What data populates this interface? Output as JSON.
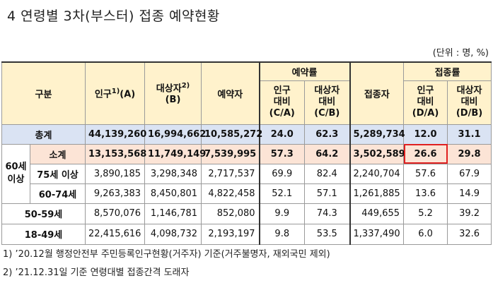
{
  "title": "4  연령별 3차(부스터) 접종 예약현황",
  "unit": "(단위 : 명, %)",
  "header": {
    "group": "구분",
    "population": "인구",
    "population_sup": "1)",
    "population_suffix": "(A)",
    "target": "대상자",
    "target_sup": "2)",
    "target_suffix": "(B)",
    "reservations": "예약자",
    "reservation_rate": "예약률",
    "res_pop_1": "인구",
    "res_pop_2": "대비",
    "res_pop_3": "(C/A)",
    "res_tgt_1": "대상자",
    "res_tgt_2": "대비",
    "res_tgt_3": "(C/B)",
    "vaccinated": "접종자",
    "vaccination_rate": "접종률",
    "vac_pop_1": "인구",
    "vac_pop_2": "대비",
    "vac_pop_3": "(D/A)",
    "vac_tgt_1": "대상자",
    "vac_tgt_2": "대비",
    "vac_tgt_3": "(D/B)"
  },
  "rows": {
    "total": {
      "label": "총계",
      "population": "44,139,260",
      "target": "16,994,662",
      "reservations": "10,585,272",
      "res_pop": "24.0",
      "res_tgt": "62.3",
      "vaccinated": "5,289,734",
      "vac_pop": "12.0",
      "vac_tgt": "31.1"
    },
    "over60_group": "60세\n이상",
    "subtotal": {
      "label": "소계",
      "population": "13,153,568",
      "target": "11,749,149",
      "reservations": "7,539,995",
      "res_pop": "57.3",
      "res_tgt": "64.2",
      "vaccinated": "3,502,589",
      "vac_pop": "26.6",
      "vac_tgt": "29.8"
    },
    "over75": {
      "label": "75세 이상",
      "population": "3,890,185",
      "target": "3,298,348",
      "reservations": "2,717,537",
      "res_pop": "69.9",
      "res_tgt": "82.4",
      "vaccinated": "2,240,704",
      "vac_pop": "57.6",
      "vac_tgt": "67.9"
    },
    "age60_74": {
      "label": "60-74세",
      "population": "9,263,383",
      "target": "8,450,801",
      "reservations": "4,822,458",
      "res_pop": "52.1",
      "res_tgt": "57.1",
      "vaccinated": "1,261,885",
      "vac_pop": "13.6",
      "vac_tgt": "14.9"
    },
    "age50_59": {
      "label": "50-59세",
      "population": "8,570,076",
      "target": "1,146,781",
      "reservations": "852,080",
      "res_pop": "9.9",
      "res_tgt": "74.3",
      "vaccinated": "449,655",
      "vac_pop": "5.2",
      "vac_tgt": "39.2"
    },
    "age18_49": {
      "label": "18-49세",
      "population": "22,415,616",
      "target": "4,098,732",
      "reservations": "2,193,197",
      "res_pop": "9.8",
      "res_tgt": "53.5",
      "vaccinated": "1,337,490",
      "vac_pop": "6.0",
      "vac_tgt": "32.6"
    }
  },
  "notes": {
    "note1": "1) ’20.12월 행정안전부 주민등록인구현황(거주자) 기준(거주불명자, 재외국민 제외)",
    "note2": "2) ’21.12.31일 기준 연령대별 접종간격 도래자"
  },
  "colors": {
    "header_bg": "#fff2cc",
    "total_bg": "#dae3f3",
    "subtotal_bg": "#fce4d6",
    "highlight_border": "#e02020"
  }
}
